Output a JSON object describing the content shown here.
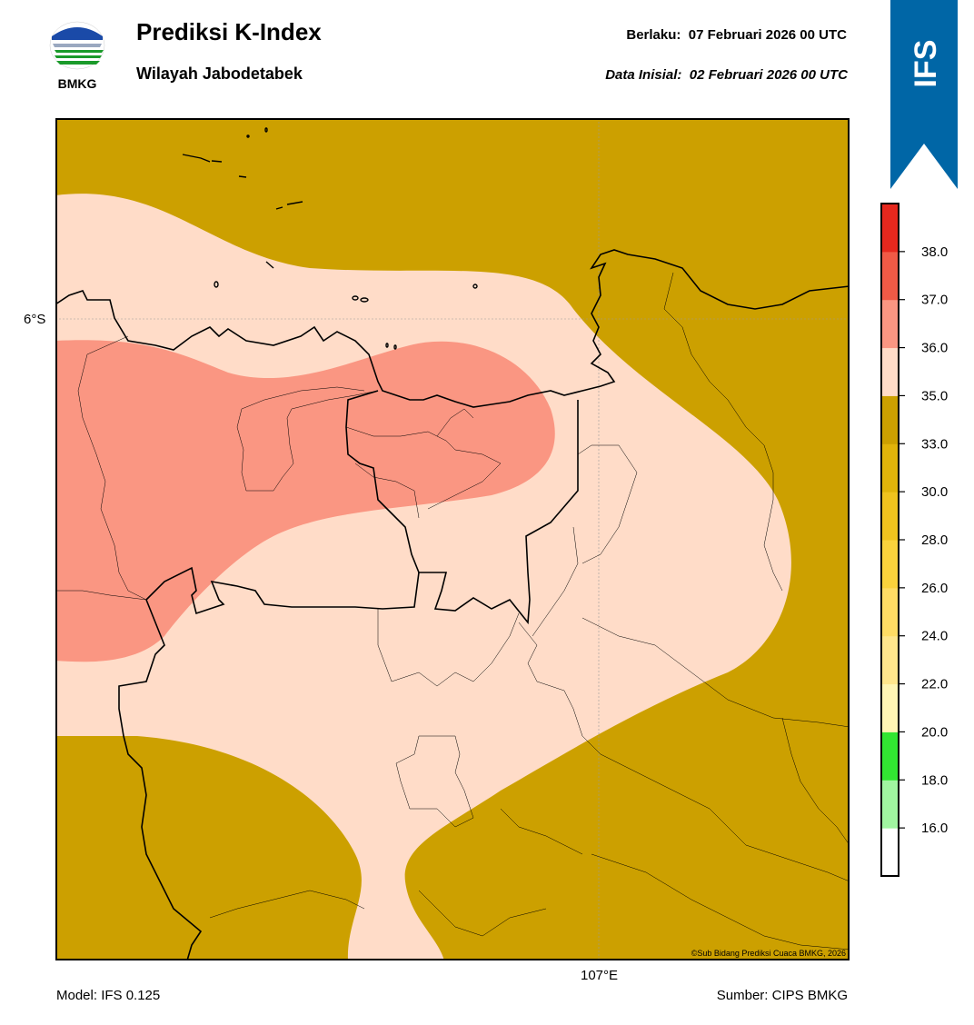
{
  "header": {
    "logo_text": "BMKG",
    "title": "Prediksi K-Index",
    "subtitle": "Wilayah Jabodetabek",
    "valid_label": "Berlaku:",
    "valid_value": "07 Februari 2026 00 UTC",
    "init_label": "Data Inisial:",
    "init_value": "02 Februari 2026 00 UTC"
  },
  "banner": {
    "text": "IFS",
    "color": "#0066a6"
  },
  "map": {
    "lat_label": "6°S",
    "lon_label": "107°E",
    "credit": "©Sub Bidang Prediksi Cuaca BMKG, 2026",
    "fills": {
      "level_33_35": "#cca000",
      "level_35_36": "#ffdcc8",
      "level_36_37": "#fa9682"
    }
  },
  "footer": {
    "model": "Model: IFS 0.125",
    "source": "Sumber: CIPS BMKG"
  },
  "colorbar": {
    "ticks": [
      "16.0",
      "18.0",
      "20.0",
      "22.0",
      "24.0",
      "26.0",
      "28.0",
      "30.0",
      "33.0",
      "35.0",
      "36.0",
      "37.0",
      "38.0"
    ],
    "colors": [
      "#ffffff",
      "#a0f5a0",
      "#32e632",
      "#fff5b4",
      "#ffe68c",
      "#ffdc64",
      "#fad23c",
      "#f0c31e",
      "#e1b40a",
      "#cca000",
      "#ffdcc8",
      "#fa9682",
      "#f05a46",
      "#e6281e"
    ]
  }
}
